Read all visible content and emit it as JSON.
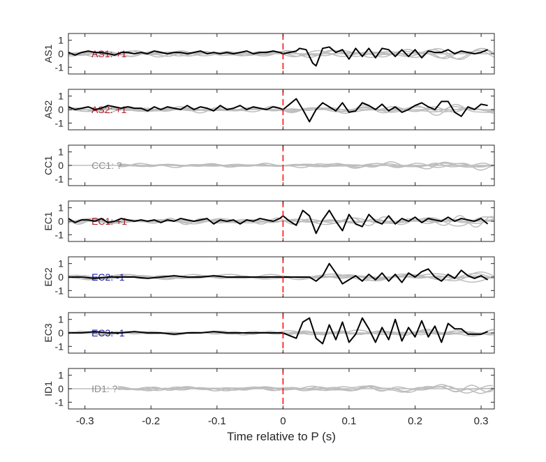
{
  "chart_data": {
    "type": "line",
    "xlabel": "Time relative to P (s)",
    "xlim": [
      -0.325,
      0.32
    ],
    "xticks": [
      "-0.3",
      "-0.2",
      "-0.1",
      "0",
      "0.1",
      "0.2",
      "0.3"
    ],
    "ylim": [
      -1.5,
      1.5
    ],
    "yticks": [
      "1",
      "0",
      "-1"
    ],
    "marker_x": 0,
    "colors": {
      "trace": "#000000",
      "background_traces": "#bdbdbd",
      "marker": "#ff0000",
      "positive": "#b2182b",
      "negative": "#1a1aa6",
      "unknown": "#8c8c8c"
    },
    "panels": [
      {
        "ylabel": "AS1",
        "annotation": "AS1: +1",
        "polarity": "positive",
        "trace_x": [
          -0.325,
          -0.315,
          -0.305,
          -0.295,
          -0.285,
          -0.275,
          -0.265,
          -0.255,
          -0.245,
          -0.235,
          -0.225,
          -0.215,
          -0.205,
          -0.195,
          -0.185,
          -0.175,
          -0.165,
          -0.155,
          -0.145,
          -0.135,
          -0.125,
          -0.115,
          -0.105,
          -0.095,
          -0.085,
          -0.075,
          -0.065,
          -0.055,
          -0.045,
          -0.035,
          -0.025,
          -0.015,
          -0.005,
          0,
          0.01,
          0.02,
          0.025,
          0.035,
          0.045,
          0.05,
          0.06,
          0.07,
          0.08,
          0.09,
          0.1,
          0.11,
          0.12,
          0.13,
          0.14,
          0.15,
          0.16,
          0.17,
          0.18,
          0.19,
          0.2,
          0.21,
          0.22,
          0.23,
          0.24,
          0.25,
          0.26,
          0.27,
          0.28,
          0.29,
          0.3,
          0.31
        ],
        "trace_y": [
          0.1,
          -0.1,
          0.1,
          0.2,
          0.1,
          0.1,
          0.0,
          -0.1,
          0.1,
          0.1,
          0.0,
          0.1,
          0.0,
          0.2,
          0.1,
          0.0,
          0.1,
          0.1,
          0.0,
          0.1,
          0.2,
          0.0,
          0.1,
          0.0,
          0.1,
          0.0,
          0.1,
          0.2,
          0.0,
          0.1,
          0.1,
          0.2,
          0.1,
          0.0,
          0.1,
          0.2,
          0.4,
          0.3,
          -0.7,
          -0.9,
          0.4,
          0.5,
          0.1,
          0.3,
          -0.4,
          0.4,
          -0.2,
          0.4,
          -0.3,
          0.4,
          0.3,
          -0.2,
          0.3,
          -0.2,
          0.3,
          -0.3,
          0.2,
          0.1,
          0.1,
          0.3,
          0.0,
          0.2,
          0.1,
          0.0,
          0.1,
          0.3
        ]
      },
      {
        "ylabel": "AS2",
        "annotation": "AS2: +1",
        "polarity": "positive",
        "trace_x": [
          -0.325,
          -0.315,
          -0.305,
          -0.295,
          -0.285,
          -0.275,
          -0.265,
          -0.255,
          -0.245,
          -0.235,
          -0.225,
          -0.215,
          -0.205,
          -0.195,
          -0.185,
          -0.175,
          -0.165,
          -0.155,
          -0.145,
          -0.135,
          -0.125,
          -0.115,
          -0.105,
          -0.095,
          -0.085,
          -0.075,
          -0.065,
          -0.055,
          -0.045,
          -0.035,
          -0.025,
          -0.015,
          -0.005,
          0,
          0.01,
          0.02,
          0.03,
          0.04,
          0.05,
          0.06,
          0.07,
          0.08,
          0.09,
          0.1,
          0.11,
          0.12,
          0.13,
          0.14,
          0.15,
          0.16,
          0.17,
          0.18,
          0.19,
          0.2,
          0.21,
          0.22,
          0.23,
          0.24,
          0.25,
          0.26,
          0.27,
          0.28,
          0.29,
          0.3,
          0.31
        ],
        "trace_y": [
          0.2,
          0.0,
          0.1,
          0.2,
          0.0,
          0.1,
          0.3,
          0.2,
          0.1,
          0.2,
          0.1,
          0.1,
          -0.1,
          0.2,
          0.0,
          0.2,
          0.1,
          0.0,
          0.3,
          0.0,
          0.2,
          0.1,
          -0.1,
          0.3,
          0.0,
          0.1,
          0.3,
          0.0,
          0.2,
          0.1,
          0.0,
          0.2,
          0.1,
          0.0,
          0.4,
          0.8,
          0.0,
          -0.9,
          0.0,
          0.5,
          0.2,
          -0.1,
          0.5,
          -0.2,
          -0.1,
          0.5,
          0.3,
          0.0,
          0.4,
          -0.1,
          0.2,
          -0.2,
          0.0,
          0.3,
          0.5,
          0.2,
          0.0,
          0.6,
          0.6,
          -0.2,
          -0.5,
          0.2,
          0.0,
          0.4,
          0.3
        ]
      },
      {
        "ylabel": "CC1",
        "annotation": "CC1: ?",
        "polarity": "unknown",
        "trace_x": [],
        "trace_y": []
      },
      {
        "ylabel": "EC1",
        "annotation": "EC1: +1",
        "polarity": "positive",
        "trace_x": [
          -0.325,
          -0.315,
          -0.305,
          -0.295,
          -0.285,
          -0.275,
          -0.265,
          -0.255,
          -0.245,
          -0.235,
          -0.225,
          -0.215,
          -0.205,
          -0.195,
          -0.185,
          -0.175,
          -0.165,
          -0.155,
          -0.145,
          -0.135,
          -0.125,
          -0.115,
          -0.105,
          -0.095,
          -0.085,
          -0.075,
          -0.065,
          -0.055,
          -0.045,
          -0.035,
          -0.025,
          -0.015,
          -0.005,
          0,
          0.01,
          0.02,
          0.03,
          0.04,
          0.05,
          0.06,
          0.07,
          0.08,
          0.09,
          0.1,
          0.11,
          0.12,
          0.13,
          0.14,
          0.15,
          0.16,
          0.17,
          0.18,
          0.19,
          0.2,
          0.21,
          0.22,
          0.23,
          0.24,
          0.25,
          0.26,
          0.27,
          0.28,
          0.29,
          0.3,
          0.31
        ],
        "trace_y": [
          0.2,
          -0.1,
          0.1,
          0.1,
          0.0,
          0.2,
          -0.1,
          0.0,
          0.2,
          0.1,
          0.0,
          0.1,
          0.0,
          0.1,
          -0.1,
          0.1,
          0.0,
          0.2,
          0.1,
          0.0,
          0.1,
          0.2,
          -0.2,
          0.1,
          0.0,
          0.1,
          -0.2,
          0.1,
          0.0,
          0.2,
          0.1,
          0.0,
          0.2,
          0.4,
          0.0,
          -0.3,
          0.8,
          0.4,
          -0.9,
          0.1,
          0.8,
          0.0,
          -0.7,
          0.5,
          -0.2,
          -0.4,
          0.5,
          0.0,
          -0.2,
          0.4,
          -0.2,
          0.2,
          0.0,
          0.3,
          -0.1,
          0.2,
          0.1,
          0.0,
          0.3,
          0.0,
          0.2,
          0.1,
          0.0,
          0.2,
          -0.2
        ]
      },
      {
        "ylabel": "EC2",
        "annotation": "EC2: -1",
        "polarity": "negative",
        "trace_x": [
          -0.325,
          -0.305,
          -0.285,
          -0.265,
          -0.245,
          -0.225,
          -0.205,
          -0.185,
          -0.165,
          -0.145,
          -0.125,
          -0.105,
          -0.085,
          -0.065,
          -0.045,
          -0.025,
          -0.005,
          0,
          0.01,
          0.02,
          0.03,
          0.04,
          0.05,
          0.06,
          0.07,
          0.08,
          0.09,
          0.1,
          0.11,
          0.12,
          0.13,
          0.14,
          0.15,
          0.16,
          0.17,
          0.18,
          0.19,
          0.2,
          0.21,
          0.22,
          0.23,
          0.24,
          0.25,
          0.26,
          0.27,
          0.28,
          0.29,
          0.3,
          0.31
        ],
        "trace_y": [
          0.0,
          0.0,
          -0.1,
          0.0,
          0.0,
          0.0,
          -0.1,
          0.0,
          0.1,
          0.0,
          0.0,
          0.1,
          0.0,
          0.0,
          0.0,
          0.0,
          0.0,
          0.0,
          0.0,
          0.0,
          0.0,
          0.0,
          -0.3,
          0.1,
          1.0,
          0.3,
          -0.5,
          -0.2,
          0.1,
          -0.3,
          0.2,
          -0.2,
          0.3,
          -0.3,
          0.2,
          -0.4,
          0.3,
          0.0,
          0.4,
          0.6,
          0.0,
          -0.3,
          0.2,
          -0.1,
          0.5,
          0.1,
          -0.1,
          0.1,
          -0.2
        ]
      },
      {
        "ylabel": "EC3",
        "annotation": "EC3: -1",
        "polarity": "negative",
        "trace_x": [
          -0.325,
          -0.305,
          -0.285,
          -0.265,
          -0.245,
          -0.225,
          -0.205,
          -0.185,
          -0.165,
          -0.145,
          -0.125,
          -0.105,
          -0.085,
          -0.065,
          -0.045,
          -0.025,
          -0.005,
          0,
          0.01,
          0.02,
          0.03,
          0.04,
          0.05,
          0.06,
          0.07,
          0.08,
          0.09,
          0.1,
          0.11,
          0.12,
          0.13,
          0.14,
          0.15,
          0.16,
          0.17,
          0.18,
          0.19,
          0.2,
          0.21,
          0.22,
          0.23,
          0.24,
          0.25,
          0.26,
          0.27,
          0.28,
          0.29,
          0.3,
          0.31
        ],
        "trace_y": [
          0.0,
          0.0,
          0.1,
          0.0,
          0.0,
          0.1,
          0.0,
          0.0,
          -0.1,
          0.0,
          0.0,
          0.1,
          0.0,
          0.0,
          0.0,
          0.0,
          0.0,
          0.0,
          -0.2,
          -0.4,
          0.8,
          1.1,
          -0.4,
          -0.8,
          0.6,
          -0.5,
          0.8,
          -0.7,
          -0.1,
          1.1,
          0.3,
          -0.7,
          0.4,
          -0.5,
          1.0,
          -0.6,
          0.4,
          -0.3,
          0.9,
          -0.3,
          0.5,
          -0.7,
          0.7,
          0.3,
          0.3,
          -0.1,
          -0.1,
          -0.1,
          0.1
        ]
      },
      {
        "ylabel": "ID1",
        "annotation": "ID1: ?",
        "polarity": "unknown",
        "trace_x": [],
        "trace_y": []
      }
    ]
  }
}
